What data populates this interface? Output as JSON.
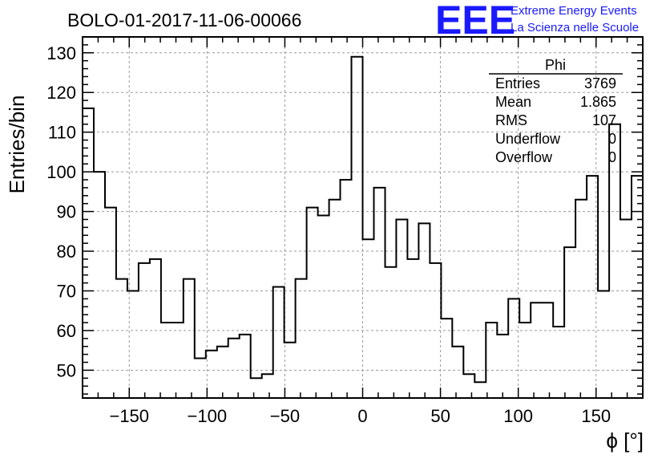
{
  "chart_data": {
    "type": "histogram",
    "title": "BOLO-01-2017-11-06-00066",
    "xlabel": "ϕ [°]",
    "ylabel": "Entries/bin",
    "xlim": [
      -180,
      180
    ],
    "ylim": [
      43,
      134
    ],
    "x_ticks": [
      -150,
      -100,
      -50,
      0,
      50,
      100,
      150
    ],
    "x_tick_labels": [
      "−150",
      "−100",
      "−50",
      "0",
      "50",
      "100",
      "150"
    ],
    "y_ticks": [
      50,
      60,
      70,
      80,
      90,
      100,
      110,
      120,
      130
    ],
    "grid": true,
    "bin_width": 7.2,
    "bin_edges_start": -180,
    "values": [
      116,
      100,
      91,
      73,
      70,
      77,
      78,
      62,
      62,
      73,
      53,
      55,
      56,
      58,
      59,
      48,
      49,
      71,
      57,
      73,
      91,
      89,
      93,
      98,
      129,
      83,
      96,
      76,
      88,
      78,
      87,
      77,
      63,
      56,
      49,
      47,
      62,
      59,
      68,
      62,
      67,
      67,
      61,
      81,
      93,
      99,
      70,
      112,
      88,
      99
    ],
    "line_color": "#000000",
    "stats": {
      "name": "Phi",
      "rows": [
        {
          "label": "Entries",
          "value": "3769"
        },
        {
          "label": "Mean",
          "value": "1.865"
        },
        {
          "label": "RMS",
          "value": "107"
        },
        {
          "label": "Underflow",
          "value": "0"
        },
        {
          "label": "Overflow",
          "value": "0"
        }
      ]
    }
  },
  "logo": {
    "text": "EEE",
    "line1": "Extreme Energy Events",
    "line2": "La Scienza nelle Scuole",
    "color": "#1a1aff"
  }
}
